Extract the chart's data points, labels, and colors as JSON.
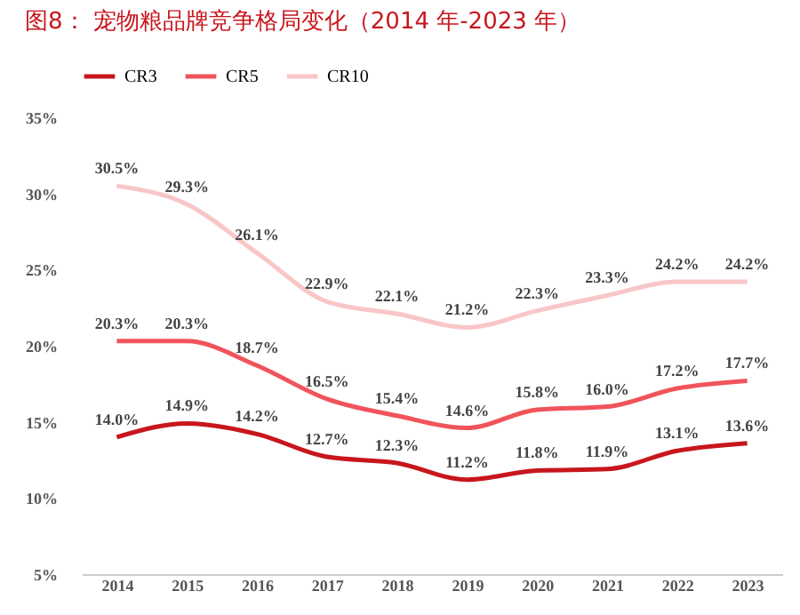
{
  "chart_data": {
    "type": "line",
    "title": "图8：  宠物粮品牌竞争格局变化（2014 年-2023 年）",
    "categories": [
      "2014",
      "2015",
      "2016",
      "2017",
      "2018",
      "2019",
      "2020",
      "2021",
      "2022",
      "2023"
    ],
    "series": [
      {
        "name": "CR3",
        "color": "#c8161d",
        "values": [
          14.0,
          14.9,
          14.2,
          12.7,
          12.3,
          11.2,
          11.8,
          11.9,
          13.1,
          13.6
        ],
        "value_labels": [
          "14.0%",
          "14.9%",
          "14.2%",
          "12.7%",
          "12.3%",
          "11.2%",
          "11.8%",
          "11.9%",
          "13.1%",
          "13.6%"
        ]
      },
      {
        "name": "CR5",
        "color": "#f0545a",
        "values": [
          20.3,
          20.3,
          18.7,
          16.5,
          15.4,
          14.6,
          15.8,
          16.0,
          17.2,
          17.7
        ],
        "value_labels": [
          "20.3%",
          "20.3%",
          "18.7%",
          "16.5%",
          "15.4%",
          "14.6%",
          "15.8%",
          "16.0%",
          "17.2%",
          "17.7%"
        ]
      },
      {
        "name": "CR10",
        "color": "#f9c6c8",
        "values": [
          30.5,
          29.3,
          26.1,
          22.9,
          22.1,
          21.2,
          22.3,
          23.3,
          24.2,
          24.2
        ],
        "value_labels": [
          "30.5%",
          "29.3%",
          "26.1%",
          "22.9%",
          "22.1%",
          "21.2%",
          "22.3%",
          "23.3%",
          "24.2%",
          "24.2%"
        ]
      }
    ],
    "ylim": [
      5,
      35
    ],
    "yticks": [
      {
        "value": 5,
        "label": "5%"
      },
      {
        "value": 10,
        "label": "10%"
      },
      {
        "value": 15,
        "label": "15%"
      },
      {
        "value": 20,
        "label": "20%"
      },
      {
        "value": 25,
        "label": "25%"
      },
      {
        "value": 30,
        "label": "30%"
      },
      {
        "value": 35,
        "label": "35%"
      }
    ],
    "grid": false,
    "legend": "top",
    "marker": "none",
    "line_style": "solid"
  }
}
